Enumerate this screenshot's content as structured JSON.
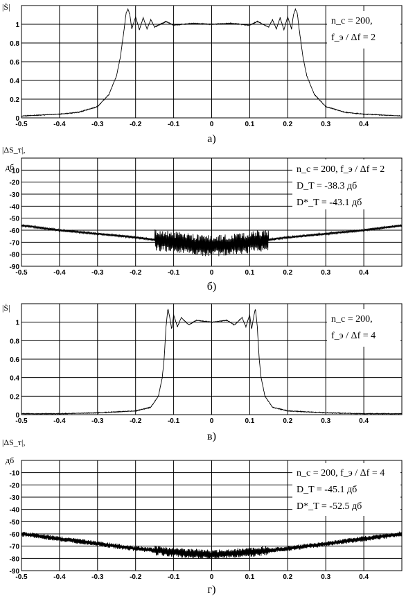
{
  "chart_data": [
    {
      "id": "a",
      "type": "line",
      "caption": "а)",
      "ylabel": "|Ṡ|",
      "xlim": [
        -0.5,
        0.5
      ],
      "ylim": [
        0,
        1.2
      ],
      "xticks": [
        "-0.5",
        "-0.4",
        "-0.3",
        "-0.2",
        "-0.1",
        "0",
        "0.1",
        "0.2",
        "0.3",
        "0.4"
      ],
      "yticks": [
        {
          "v": 0,
          "label": "0"
        },
        {
          "v": 0.2,
          "label": "0.2"
        },
        {
          "v": 0.4,
          "label": "0.4"
        },
        {
          "v": 0.6,
          "label": "0.6"
        },
        {
          "v": 0.8,
          "label": "0.8"
        },
        {
          "v": 1.0,
          "label": "1"
        }
      ],
      "annotation": [
        "n_с = 200,",
        "f_э / Δf = 2"
      ],
      "curve": {
        "x": [
          -0.5,
          -0.45,
          -0.4,
          -0.35,
          -0.3,
          -0.27,
          -0.25,
          -0.24,
          -0.23,
          -0.225,
          -0.22,
          -0.215,
          -0.21,
          -0.2,
          -0.19,
          -0.18,
          -0.17,
          -0.16,
          -0.15,
          -0.12,
          -0.1,
          -0.05,
          0,
          0.05,
          0.1,
          0.12,
          0.15,
          0.16,
          0.17,
          0.18,
          0.19,
          0.2,
          0.21,
          0.215,
          0.22,
          0.225,
          0.23,
          0.24,
          0.25,
          0.27,
          0.3,
          0.35,
          0.4,
          0.45,
          0.5
        ],
        "y": [
          0.02,
          0.03,
          0.04,
          0.06,
          0.12,
          0.25,
          0.45,
          0.65,
          0.95,
          1.12,
          1.16,
          1.1,
          0.95,
          1.08,
          0.94,
          1.07,
          0.95,
          1.05,
          0.97,
          1.03,
          0.99,
          1.01,
          1.0,
          1.01,
          0.99,
          1.03,
          0.97,
          1.05,
          0.95,
          1.07,
          0.94,
          1.08,
          0.95,
          1.1,
          1.16,
          1.12,
          0.95,
          0.65,
          0.45,
          0.25,
          0.12,
          0.06,
          0.04,
          0.03,
          0.02
        ]
      }
    },
    {
      "id": "b",
      "type": "line",
      "caption": "б)",
      "ylabel": "|ΔS_т|,",
      "yunit": "дб",
      "xlim": [
        -0.5,
        0.5
      ],
      "ylim": [
        -90,
        0
      ],
      "xticks": [
        "-0.5",
        "-0.4",
        "-0.3",
        "-0.2",
        "-0.1",
        "0",
        "0.1",
        "0.2",
        "0.3",
        "0.4"
      ],
      "yticks": [
        {
          "v": -10,
          "label": "-10"
        },
        {
          "v": -20,
          "label": "-20"
        },
        {
          "v": -30,
          "label": "-30"
        },
        {
          "v": -40,
          "label": "-40"
        },
        {
          "v": -50,
          "label": "-50"
        },
        {
          "v": -60,
          "label": "-60"
        },
        {
          "v": -70,
          "label": "-70"
        },
        {
          "v": -80,
          "label": "-80"
        },
        {
          "v": -90,
          "label": "-90"
        }
      ],
      "annotation": [
        "n_с = 200, f_э / Δf = 2",
        "D_T = -38.3 дб",
        "D*_T = -43.1 дб"
      ],
      "curve": {
        "x": [
          -0.5,
          -0.4,
          -0.3,
          -0.2,
          -0.15,
          -0.1,
          -0.05,
          0,
          0.05,
          0.1,
          0.15,
          0.2,
          0.3,
          0.4,
          0.5
        ],
        "y": [
          -56,
          -60,
          -63,
          -66,
          -68,
          -70,
          -72,
          -73,
          -72,
          -70,
          -68,
          -66,
          -63,
          -60,
          -56
        ]
      }
    },
    {
      "id": "v",
      "type": "line",
      "caption": "в)",
      "ylabel": "|Ṡ|",
      "xlim": [
        -0.5,
        0.5
      ],
      "ylim": [
        0,
        1.2
      ],
      "xticks": [
        "-0.5",
        "-0.4",
        "-0.3",
        "-0.2",
        "-0.1",
        "0",
        "0.1",
        "0.2",
        "0.3",
        "0.4"
      ],
      "yticks": [
        {
          "v": 0,
          "label": "0"
        },
        {
          "v": 0.2,
          "label": "0.2"
        },
        {
          "v": 0.4,
          "label": "0.4"
        },
        {
          "v": 0.6,
          "label": "0.6"
        },
        {
          "v": 0.8,
          "label": "0.8"
        },
        {
          "v": 1.0,
          "label": "1"
        }
      ],
      "annotation": [
        "n_с = 200,",
        "f_э / Δf = 4"
      ],
      "curve": {
        "x": [
          -0.5,
          -0.4,
          -0.3,
          -0.2,
          -0.16,
          -0.14,
          -0.13,
          -0.125,
          -0.12,
          -0.115,
          -0.11,
          -0.105,
          -0.1,
          -0.09,
          -0.08,
          -0.06,
          -0.04,
          0,
          0.04,
          0.06,
          0.08,
          0.09,
          0.1,
          0.105,
          0.11,
          0.115,
          0.12,
          0.125,
          0.13,
          0.14,
          0.16,
          0.2,
          0.3,
          0.4,
          0.5
        ],
        "y": [
          0.01,
          0.01,
          0.02,
          0.04,
          0.08,
          0.2,
          0.4,
          0.6,
          0.95,
          1.15,
          1.05,
          0.92,
          1.08,
          0.95,
          1.05,
          0.97,
          1.02,
          1.0,
          1.02,
          0.97,
          1.05,
          0.95,
          1.08,
          0.92,
          1.05,
          1.15,
          0.95,
          0.6,
          0.4,
          0.2,
          0.08,
          0.04,
          0.02,
          0.01,
          0.01
        ]
      }
    },
    {
      "id": "g",
      "type": "line",
      "caption": "г)",
      "ylabel": "|ΔS_т|,",
      "yunit": "дб",
      "xlim": [
        -0.5,
        0.5
      ],
      "ylim": [
        -90,
        0
      ],
      "xticks": [
        "-0.5",
        "-0.4",
        "-0.3",
        "-0.2",
        "-0.1",
        "0",
        "0.1",
        "0.2",
        "0.3",
        "0.4"
      ],
      "yticks": [
        {
          "v": -10,
          "label": "-10"
        },
        {
          "v": -20,
          "label": "-20"
        },
        {
          "v": -30,
          "label": "-30"
        },
        {
          "v": -40,
          "label": "-40"
        },
        {
          "v": -50,
          "label": "-50"
        },
        {
          "v": -60,
          "label": "-60"
        },
        {
          "v": -70,
          "label": "-70"
        },
        {
          "v": -80,
          "label": "-80"
        },
        {
          "v": -90,
          "label": "-90"
        }
      ],
      "annotation": [
        "n_с = 200, f_э / Δf = 4",
        "D_T = -45.1 дб",
        "D*_T = -52.5 дб"
      ],
      "curve": {
        "x": [
          -0.5,
          -0.4,
          -0.3,
          -0.2,
          -0.1,
          -0.05,
          0,
          0.05,
          0.1,
          0.2,
          0.3,
          0.4,
          0.5
        ],
        "y": [
          -60,
          -64,
          -68,
          -72,
          -75,
          -76,
          -77,
          -76,
          -75,
          -72,
          -68,
          -64,
          -60
        ]
      }
    }
  ]
}
